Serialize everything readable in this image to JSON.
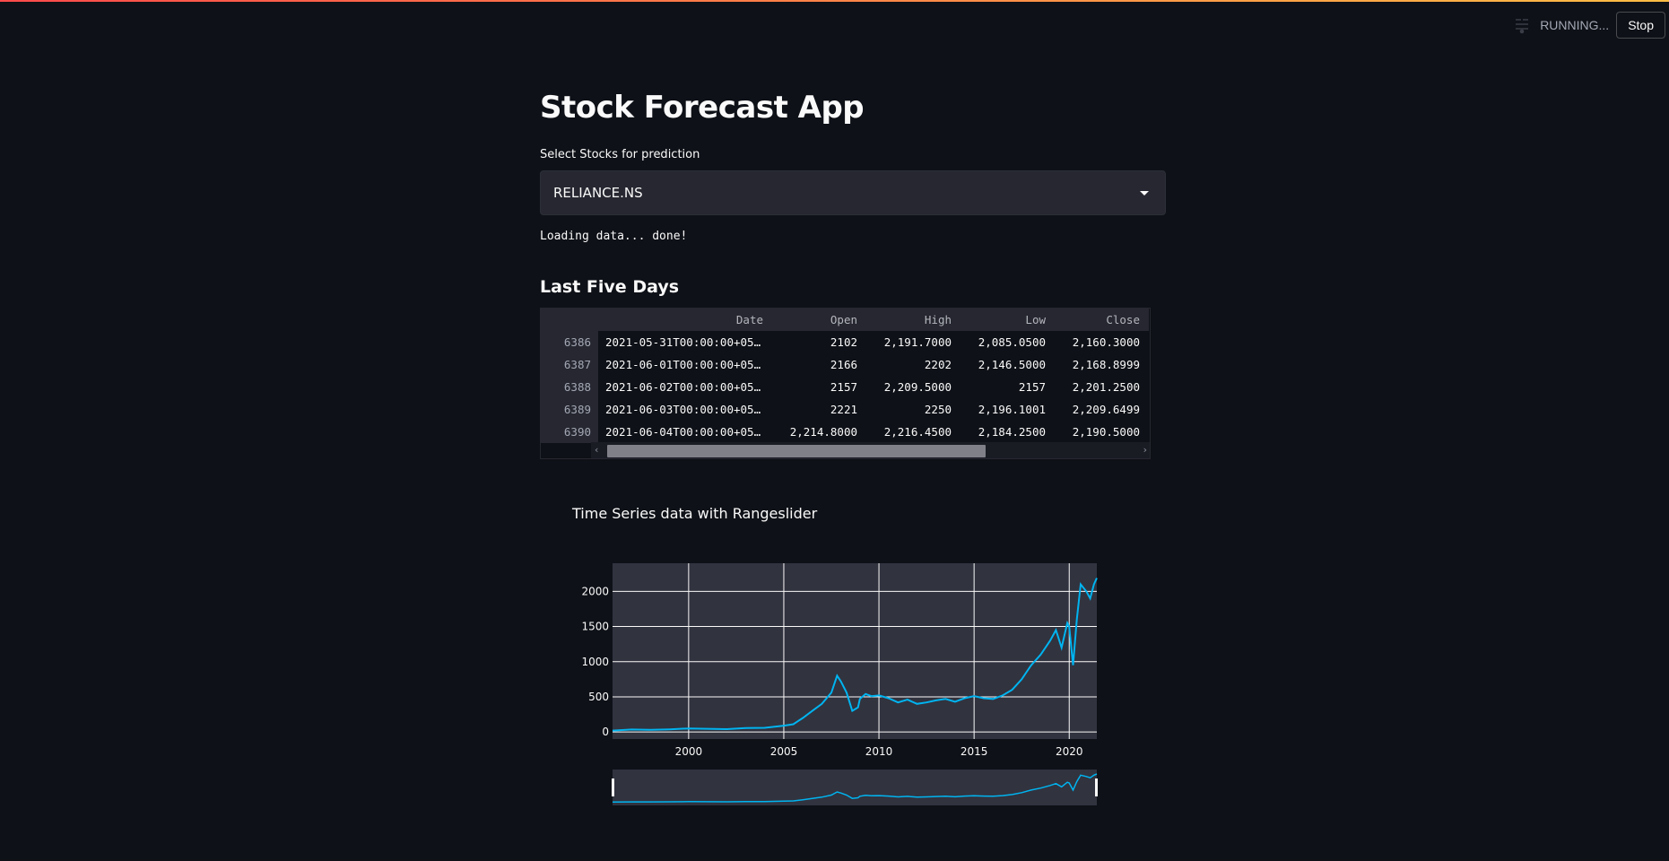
{
  "status": {
    "running_label": "RUNNING...",
    "stop_label": "Stop",
    "icon": "running-icon"
  },
  "app": {
    "title": "Stock Forecast App",
    "select_label": "Select Stocks for prediction",
    "selected_stock": "RELIANCE.NS",
    "loading_text": "Loading data... done!",
    "last_five_header": "Last Five Days"
  },
  "table": {
    "columns": [
      "",
      "Date",
      "Open",
      "High",
      "Low",
      "Close"
    ],
    "rows": [
      {
        "index": "6386",
        "date": "2021-05-31T00:00:00+05…",
        "open": "2102",
        "high": "2,191.7000",
        "low": "2,085.0500",
        "close": "2,160.3000"
      },
      {
        "index": "6387",
        "date": "2021-06-01T00:00:00+05…",
        "open": "2166",
        "high": "2202",
        "low": "2,146.5000",
        "close": "2,168.8999"
      },
      {
        "index": "6388",
        "date": "2021-06-02T00:00:00+05…",
        "open": "2157",
        "high": "2,209.5000",
        "low": "2157",
        "close": "2,201.2500"
      },
      {
        "index": "6389",
        "date": "2021-06-03T00:00:00+05…",
        "open": "2221",
        "high": "2250",
        "low": "2,196.1001",
        "close": "2,209.6499"
      },
      {
        "index": "6390",
        "date": "2021-06-04T00:00:00+05…",
        "open": "2,214.8000",
        "high": "2,216.4500",
        "low": "2,184.2500",
        "close": "2,190.5000"
      }
    ]
  },
  "chart_data": {
    "type": "line",
    "title": "Time Series data with Rangeslider",
    "xlabel": "",
    "ylabel": "",
    "x_ticks": [
      "2000",
      "2005",
      "2010",
      "2015",
      "2020"
    ],
    "y_ticks": [
      "0",
      "500",
      "1000",
      "1500",
      "2000"
    ],
    "xlim": [
      1996.0,
      2021.45
    ],
    "ylim": [
      -100,
      2400
    ],
    "grid": true,
    "rangeslider": true,
    "series": [
      {
        "color": "#00b4f0",
        "x": [
          1996.0,
          1997.0,
          1998.0,
          1999.0,
          2000.0,
          2001.0,
          2002.0,
          2003.0,
          2004.0,
          2005.0,
          2005.5,
          2006.0,
          2006.5,
          2007.0,
          2007.5,
          2007.8,
          2008.0,
          2008.3,
          2008.6,
          2008.9,
          2009.0,
          2009.3,
          2009.6,
          2010.0,
          2010.5,
          2011.0,
          2011.5,
          2012.0,
          2012.5,
          2013.0,
          2013.5,
          2014.0,
          2014.5,
          2015.0,
          2015.5,
          2016.0,
          2016.5,
          2017.0,
          2017.5,
          2018.0,
          2018.5,
          2019.0,
          2019.3,
          2019.6,
          2019.9,
          2020.0,
          2020.2,
          2020.4,
          2020.6,
          2020.9,
          2021.1,
          2021.3,
          2021.45
        ],
        "values": [
          20,
          35,
          30,
          38,
          50,
          45,
          40,
          55,
          60,
          90,
          110,
          200,
          300,
          400,
          560,
          800,
          720,
          560,
          300,
          350,
          470,
          540,
          510,
          520,
          480,
          420,
          460,
          400,
          420,
          450,
          470,
          430,
          480,
          510,
          480,
          470,
          520,
          600,
          750,
          950,
          1100,
          1300,
          1450,
          1200,
          1550,
          1500,
          950,
          1600,
          2100,
          2000,
          1900,
          2100,
          2190
        ]
      }
    ]
  }
}
